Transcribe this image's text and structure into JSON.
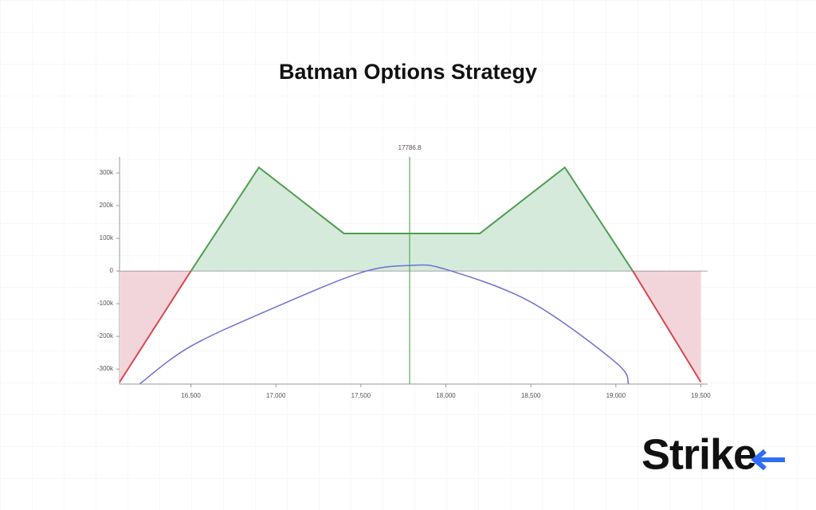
{
  "chart_data": {
    "type": "payoff",
    "title": "Batman Options Strategy",
    "marker_x": 17786.8,
    "logo": "Strike",
    "xlim": [
      16080,
      19540
    ],
    "ylim": [
      -346000,
      349000
    ],
    "xticks": [
      {
        "value": 16500,
        "label": "16,500"
      },
      {
        "value": 17000,
        "label": "17,000"
      },
      {
        "value": 17500,
        "label": "17,500"
      },
      {
        "value": 18000,
        "label": "18,000"
      },
      {
        "value": 18500,
        "label": "18,500"
      },
      {
        "value": 19000,
        "label": "19,000"
      },
      {
        "value": 19500,
        "label": "19,500"
      }
    ],
    "yticks": [
      {
        "value": -300000,
        "label": "-300k"
      },
      {
        "value": -200000,
        "label": "-200k"
      },
      {
        "value": -100000,
        "label": "-100k"
      },
      0,
      {
        "value": 100000,
        "label": "100k"
      },
      {
        "value": 200000,
        "label": "200k"
      },
      {
        "value": 300000,
        "label": "300k"
      }
    ],
    "series": [
      {
        "color": "#4f9e50",
        "negative_color": "#d9464f",
        "fill": "#d5eadb",
        "negative_fill": "#f2d5db",
        "x": [
          16080,
          16500,
          16900,
          17400,
          18200,
          18700,
          19100,
          19500
        ],
        "values": [
          -340000,
          0,
          317000,
          115000,
          115000,
          317000,
          0,
          -340000
        ]
      },
      {
        "color": "#6d6fd3",
        "x": [
          16200,
          16500,
          17000,
          17500,
          17786.8,
          18000,
          18500,
          19000,
          19075
        ],
        "values": [
          -345000,
          -230000,
          -110000,
          -5000,
          17000,
          5000,
          -95000,
          -280000,
          -345000
        ]
      }
    ]
  }
}
